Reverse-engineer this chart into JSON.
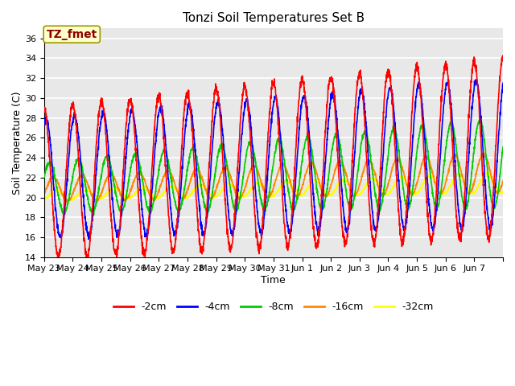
{
  "title": "Tonzi Soil Temperatures Set B",
  "xlabel": "Time",
  "ylabel": "Soil Temperature (C)",
  "ylim": [
    14,
    37
  ],
  "yticks": [
    14,
    16,
    18,
    20,
    22,
    24,
    26,
    28,
    30,
    32,
    34,
    36
  ],
  "plot_bg_color": "#e8e8e8",
  "fig_bg_color": "#ffffff",
  "annotation_text": "TZ_fmet",
  "annotation_color": "#8b0000",
  "annotation_bg": "#ffffcc",
  "series": {
    "-2cm": {
      "color": "#ff0000",
      "linewidth": 1.2
    },
    "-4cm": {
      "color": "#0000ff",
      "linewidth": 1.2
    },
    "-8cm": {
      "color": "#00cc00",
      "linewidth": 1.2
    },
    "-16cm": {
      "color": "#ff8800",
      "linewidth": 1.2
    },
    "-32cm": {
      "color": "#ffff00",
      "linewidth": 1.5
    }
  },
  "x_tick_labels": [
    "May 23",
    "May 24",
    "May 25",
    "May 26",
    "May 27",
    "May 28",
    "May 29",
    "May 30",
    "May 31",
    "Jun 1",
    "Jun 2",
    "Jun 3",
    "Jun 4",
    "Jun 5",
    "Jun 6",
    "Jun 7"
  ],
  "title_fontsize": 11,
  "legend_fontsize": 9,
  "tick_fontsize": 8,
  "n_days": 16
}
